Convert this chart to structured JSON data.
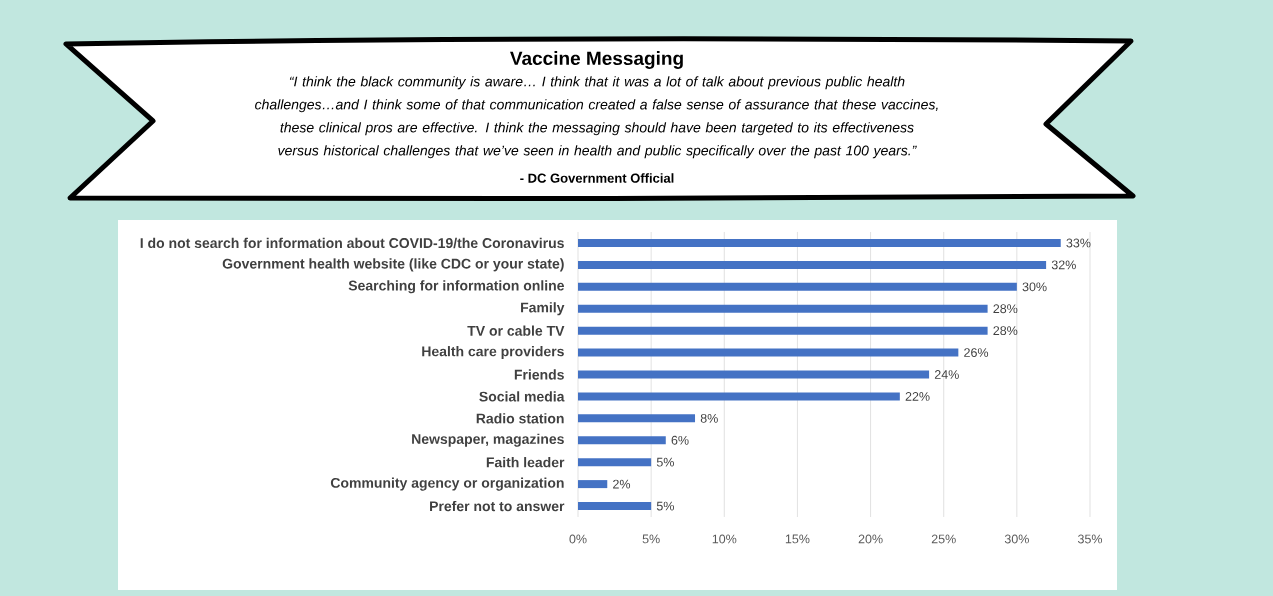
{
  "chart_data": {
    "type": "bar",
    "orientation": "horizontal",
    "title": "Vaccine Messaging",
    "subtitle": "“I think the black community is aware… I think that it was a lot of talk about previous public health challenges…and I think some of that communication created a false sense of assurance that these vaccines, these clinical pros are effective. I think the messaging should have been targeted to its effectiveness versus historical challenges that we’ve seen in health and public specifically over the past 100 years.”",
    "annotations": [
      "- DC Government Official"
    ],
    "categories": [
      "I do not search for information about COVID-19/the Coronavirus",
      "Government health website (like CDC or your state)",
      "Searching for information online",
      "Family",
      "TV or cable TV",
      "Health care providers",
      "Friends",
      "Social media",
      "Radio station",
      "Newspaper, magazines",
      "Faith leader",
      "Community agency or organization",
      "Prefer not to answer"
    ],
    "values": [
      33,
      32,
      30,
      28,
      28,
      26,
      24,
      22,
      8,
      6,
      5,
      2,
      5
    ],
    "value_labels": [
      "33%",
      "32%",
      "30%",
      "28%",
      "28%",
      "26%",
      "24%",
      "22%",
      "8%",
      "6%",
      "5%",
      "2%",
      "5%"
    ],
    "color": "#4472c4",
    "xlim": [
      0,
      35
    ],
    "xticks": [
      {
        "value": 0,
        "label": "0%"
      },
      {
        "value": 5,
        "label": "5%"
      },
      {
        "value": 10,
        "label": "10%"
      },
      {
        "value": 15,
        "label": "15%"
      },
      {
        "value": 20,
        "label": "20%"
      },
      {
        "value": 25,
        "label": "25%"
      },
      {
        "value": 30,
        "label": "30%"
      },
      {
        "value": 35,
        "label": "35%"
      }
    ],
    "grid": "x"
  }
}
